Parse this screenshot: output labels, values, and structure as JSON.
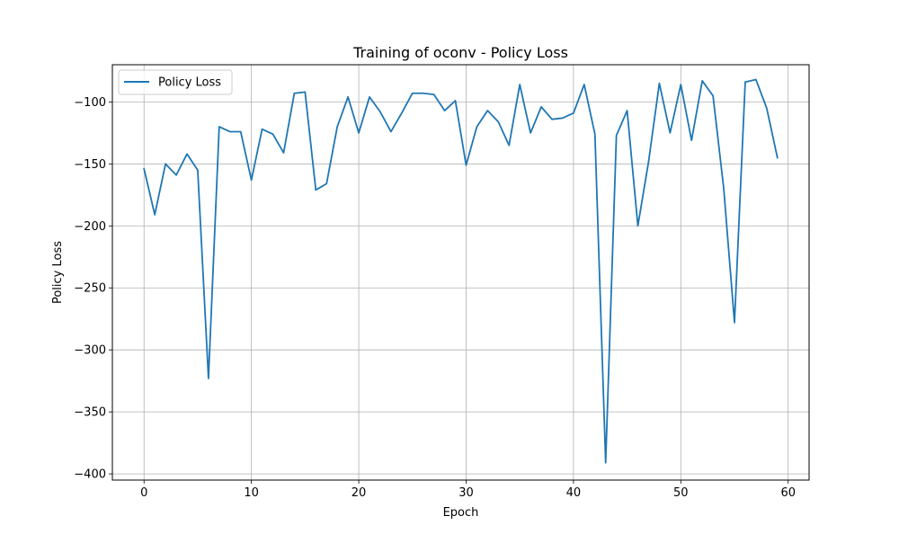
{
  "chart_data": {
    "type": "line",
    "title": "Training of oconv - Policy Loss",
    "xlabel": "Epoch",
    "ylabel": "Policy Loss",
    "xlim": [
      -2.95,
      61.95
    ],
    "ylim": [
      -405,
      -70
    ],
    "xticks": [
      0,
      10,
      20,
      30,
      40,
      50,
      60
    ],
    "yticks": [
      -400,
      -350,
      -300,
      -250,
      -200,
      -150,
      -100
    ],
    "grid": true,
    "legend_position": "upper-left",
    "series": [
      {
        "name": "Policy Loss",
        "color": "#1f77b4",
        "x": [
          0,
          1,
          2,
          3,
          4,
          5,
          6,
          7,
          8,
          9,
          10,
          11,
          12,
          13,
          14,
          15,
          16,
          17,
          18,
          19,
          20,
          21,
          22,
          23,
          24,
          25,
          26,
          27,
          28,
          29,
          30,
          31,
          32,
          33,
          34,
          35,
          36,
          37,
          38,
          39,
          40,
          41,
          42,
          43,
          44,
          45,
          46,
          47,
          48,
          49,
          50,
          51,
          52,
          53,
          54,
          55,
          56,
          57,
          58,
          59
        ],
        "y": [
          -154,
          -191,
          -150,
          -159,
          -142,
          -155,
          -323,
          -120,
          -124,
          -124,
          -163,
          -122,
          -126,
          -141,
          -93,
          -92,
          -171,
          -166,
          -120,
          -96,
          -125,
          -96,
          -108,
          -124,
          -109,
          -93,
          -93,
          -94,
          -107,
          -99,
          -151,
          -120,
          -107,
          -116,
          -135,
          -86,
          -125,
          -104,
          -114,
          -113,
          -109,
          -86,
          -126,
          -391,
          -127,
          -107,
          -200,
          -148,
          -85,
          -125,
          -86,
          -131,
          -83,
          -95,
          -170,
          -278,
          -84,
          -82,
          -105,
          -145
        ]
      }
    ]
  }
}
